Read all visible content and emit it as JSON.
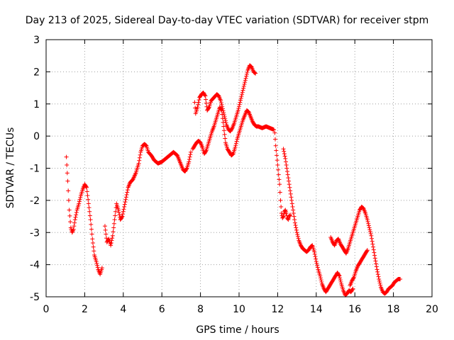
{
  "chart_data": {
    "type": "scatter",
    "title": "Day 213 of 2025, Sidereal Day-to-day VTEC variation (SDTVAR) for receiver stpm",
    "xlabel": "GPS time / hours",
    "ylabel": "SDTVAR / TECUs",
    "xlim": [
      0,
      20
    ],
    "ylim": [
      -5,
      3
    ],
    "xticks": [
      "0",
      "2",
      "4",
      "6",
      "8",
      "10",
      "12",
      "14",
      "16",
      "18",
      "20"
    ],
    "yticks": [
      "-5",
      "-4",
      "-3",
      "-2",
      "-1",
      "0",
      "1",
      "2",
      "3"
    ],
    "grid": true,
    "marker": "+",
    "color": "#ff0000",
    "series": [
      {
        "x": [
          1.05,
          1.12,
          1.2,
          1.28,
          1.35,
          1.42,
          1.5,
          1.6,
          1.7,
          1.8,
          1.9,
          2.0,
          2.1,
          2.2,
          2.3,
          2.4,
          2.5,
          2.6,
          2.7,
          2.8,
          2.9
        ],
        "y": [
          -0.65,
          -1.4,
          -2.3,
          -2.85,
          -3.0,
          -2.9,
          -2.6,
          -2.3,
          -2.1,
          -1.85,
          -1.65,
          -1.5,
          -1.6,
          -2.1,
          -2.6,
          -3.2,
          -3.7,
          -3.9,
          -4.15,
          -4.3,
          -4.1
        ]
      },
      {
        "x": [
          3.05,
          3.15,
          3.25,
          3.35,
          3.45,
          3.55,
          3.65,
          3.75,
          3.85,
          3.95,
          4.05,
          4.15,
          4.25,
          4.35,
          4.5,
          4.65,
          4.8,
          4.9,
          5.0,
          5.1,
          5.2,
          5.3,
          5.45,
          5.6,
          5.8,
          6.0,
          6.2,
          6.4,
          6.6,
          6.8,
          7.0,
          7.1,
          7.2,
          7.3,
          7.4,
          7.5
        ],
        "y": [
          -2.8,
          -3.3,
          -3.2,
          -3.4,
          -3.1,
          -2.6,
          -2.1,
          -2.3,
          -2.6,
          -2.5,
          -2.2,
          -1.9,
          -1.6,
          -1.45,
          -1.35,
          -1.15,
          -0.85,
          -0.5,
          -0.3,
          -0.25,
          -0.3,
          -0.5,
          -0.6,
          -0.75,
          -0.85,
          -0.8,
          -0.7,
          -0.6,
          -0.5,
          -0.6,
          -0.9,
          -1.05,
          -1.1,
          -1.0,
          -0.8,
          -0.5
        ]
      },
      {
        "x": [
          7.6,
          7.7,
          7.8,
          7.9,
          8.0,
          8.1,
          8.2,
          8.3,
          8.4,
          8.5,
          8.6,
          8.7,
          8.8,
          8.9,
          9.0,
          9.1,
          9.2,
          9.3,
          9.4,
          9.5,
          9.6,
          9.7,
          9.8,
          9.9,
          10.0,
          10.1,
          10.2,
          10.3,
          10.4,
          10.5,
          10.6,
          10.7,
          10.8,
          10.9,
          11.0,
          11.2,
          11.4,
          11.6,
          11.8
        ],
        "y": [
          -0.4,
          -0.3,
          -0.2,
          -0.15,
          -0.2,
          -0.35,
          -0.55,
          -0.45,
          -0.25,
          -0.05,
          0.15,
          0.3,
          0.5,
          0.7,
          0.9,
          0.8,
          0.3,
          -0.2,
          -0.4,
          -0.5,
          -0.6,
          -0.55,
          -0.35,
          -0.1,
          0.1,
          0.3,
          0.5,
          0.65,
          0.8,
          0.75,
          0.6,
          0.45,
          0.35,
          0.3,
          0.3,
          0.25,
          0.3,
          0.25,
          0.2
        ]
      },
      {
        "x": [
          7.7,
          7.75,
          7.85,
          7.95,
          8.05,
          8.15,
          8.25,
          8.35,
          8.45,
          8.55,
          8.7,
          8.85,
          8.95,
          9.05,
          9.15,
          9.25,
          9.35,
          9.45,
          9.55,
          9.65,
          9.75,
          9.85,
          9.95,
          10.05,
          10.15,
          10.25,
          10.35,
          10.45,
          10.55,
          10.65,
          10.75,
          10.85
        ],
        "y": [
          1.05,
          0.7,
          0.9,
          1.2,
          1.3,
          1.35,
          1.25,
          0.8,
          0.9,
          1.1,
          1.2,
          1.3,
          1.25,
          1.1,
          0.85,
          0.6,
          0.35,
          0.2,
          0.15,
          0.25,
          0.4,
          0.6,
          0.8,
          1.05,
          1.3,
          1.55,
          1.8,
          2.05,
          2.2,
          2.15,
          2.0,
          1.95
        ]
      },
      {
        "x": [
          11.85,
          11.9,
          12.0,
          12.1,
          12.15,
          12.2,
          12.25,
          12.3,
          12.35,
          12.4,
          12.45,
          12.5,
          12.55,
          12.6,
          12.65
        ],
        "y": [
          0.1,
          -0.3,
          -0.9,
          -1.5,
          -2.0,
          -2.4,
          -2.55,
          -2.5,
          -2.35,
          -2.3,
          -2.4,
          -2.55,
          -2.6,
          -2.5,
          -2.45
        ]
      },
      {
        "x": [
          12.3,
          12.4,
          12.5,
          12.6,
          12.7,
          12.8,
          12.9,
          13.0,
          13.1,
          13.2,
          13.3,
          13.4,
          13.5,
          13.6,
          13.7,
          13.8,
          13.9,
          14.0,
          14.1,
          14.2,
          14.3,
          14.4,
          14.5,
          14.6,
          14.7,
          14.8,
          14.9,
          15.0,
          15.1,
          15.2,
          15.3,
          15.4,
          15.5,
          15.6,
          15.7,
          15.8,
          15.9
        ],
        "y": [
          -0.4,
          -0.7,
          -1.1,
          -1.5,
          -1.9,
          -2.3,
          -2.7,
          -3.0,
          -3.25,
          -3.4,
          -3.5,
          -3.55,
          -3.6,
          -3.55,
          -3.45,
          -3.4,
          -3.6,
          -3.9,
          -4.15,
          -4.35,
          -4.6,
          -4.75,
          -4.85,
          -4.75,
          -4.65,
          -4.55,
          -4.45,
          -4.35,
          -4.25,
          -4.35,
          -4.6,
          -4.8,
          -4.95,
          -4.9,
          -4.8,
          -4.85,
          -4.75
        ]
      },
      {
        "x": [
          14.75,
          14.85,
          14.95,
          15.05,
          15.15,
          15.25,
          15.35,
          15.45,
          15.55,
          15.65,
          15.75,
          15.85,
          15.95,
          16.05,
          16.15,
          16.25,
          16.35,
          16.45,
          16.55,
          16.65,
          16.75,
          16.85,
          16.95,
          17.05,
          17.15,
          17.25,
          17.35,
          17.45,
          17.55,
          17.65,
          17.75,
          17.85,
          17.95,
          18.05,
          18.15,
          18.25,
          18.35
        ],
        "y": [
          -3.15,
          -3.3,
          -3.4,
          -3.25,
          -3.2,
          -3.35,
          -3.45,
          -3.55,
          -3.65,
          -3.5,
          -3.3,
          -3.1,
          -2.9,
          -2.7,
          -2.5,
          -2.3,
          -2.2,
          -2.25,
          -2.4,
          -2.6,
          -2.85,
          -3.1,
          -3.45,
          -3.8,
          -4.15,
          -4.45,
          -4.7,
          -4.85,
          -4.9,
          -4.85,
          -4.75,
          -4.7,
          -4.65,
          -4.55,
          -4.5,
          -4.45,
          -4.45
        ]
      },
      {
        "x": [
          15.75,
          15.85,
          15.95,
          16.05,
          16.15,
          16.25,
          16.35,
          16.45,
          16.55,
          16.65
        ],
        "y": [
          -4.65,
          -4.5,
          -4.4,
          -4.2,
          -4.05,
          -3.95,
          -3.85,
          -3.75,
          -3.65,
          -3.55
        ]
      }
    ]
  }
}
